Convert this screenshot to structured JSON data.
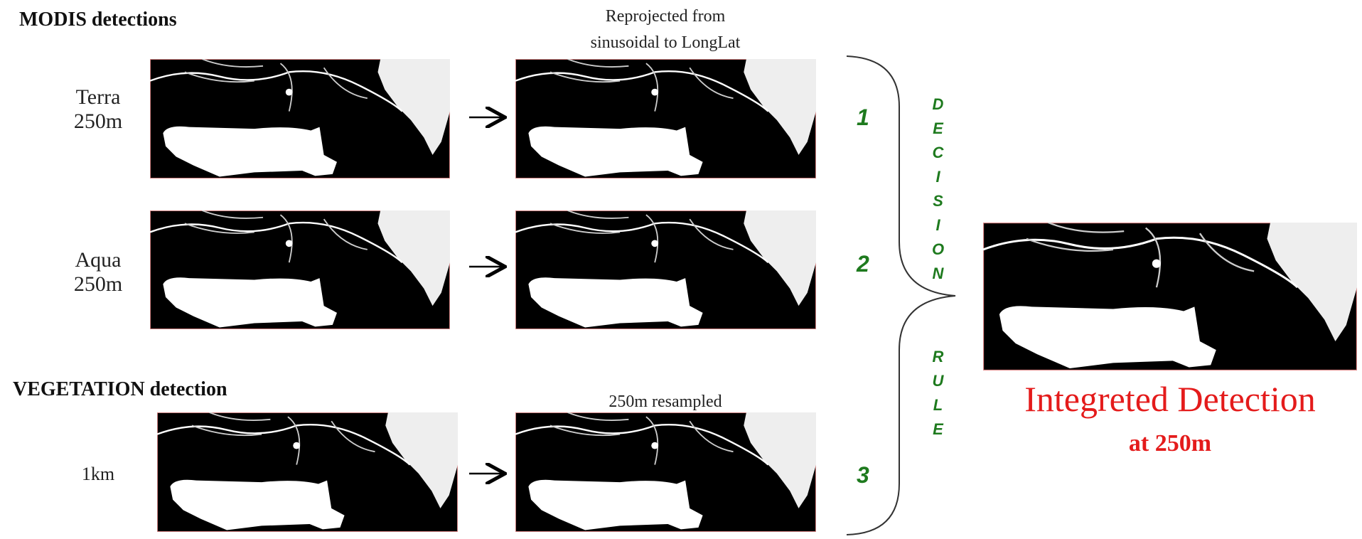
{
  "modis": {
    "heading": "MODIS detections",
    "reproject_note": [
      "Reprojected from",
      "sinusoidal to LongLat"
    ],
    "terra": [
      "Terra",
      "250m"
    ],
    "aqua": [
      "Aqua",
      "250m"
    ]
  },
  "vegetation": {
    "heading": "VEGETATION detection",
    "resolution": "1km",
    "resample_note": "250m resampled"
  },
  "decision": {
    "numbers": [
      "1",
      "2",
      "3"
    ],
    "words": [
      "DECISION",
      "RULE"
    ]
  },
  "result": {
    "title": "Integreted Detection",
    "subtitle": "at 250m"
  }
}
